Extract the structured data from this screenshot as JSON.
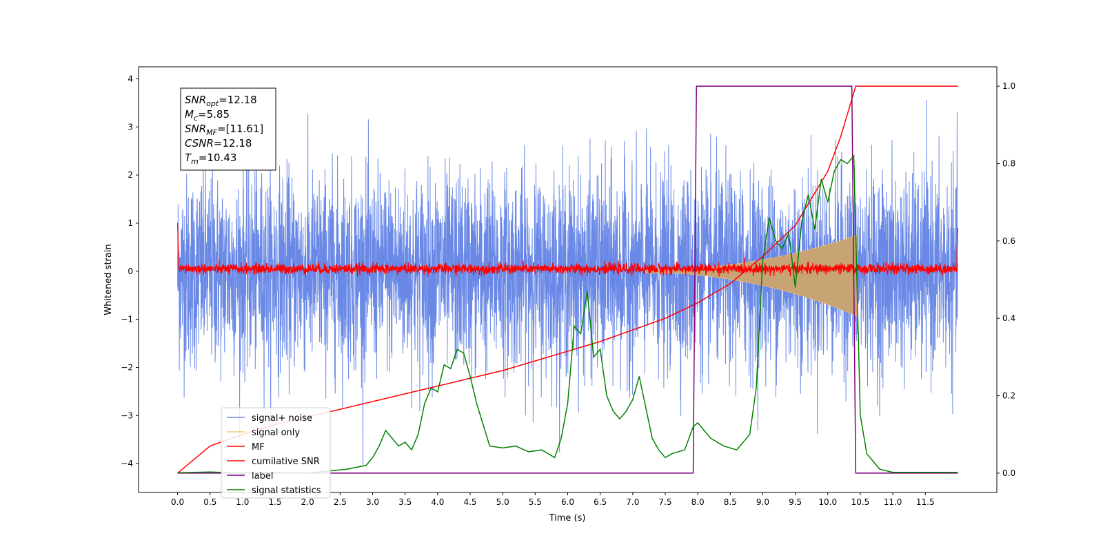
{
  "chart_data": {
    "type": "line",
    "xlabel": "Time (s)",
    "ylabel": "Whitened strain",
    "xlim": [
      -0.6,
      12.6
    ],
    "ylim": [
      -4.6,
      4.25
    ],
    "y2lim": [
      -0.05,
      1.05
    ],
    "x_ticks": [
      "0.0",
      "0.5",
      "1.0",
      "1.5",
      "2.0",
      "2.5",
      "3.0",
      "3.5",
      "4.0",
      "4.5",
      "5.0",
      "5.5",
      "6.0",
      "6.5",
      "7.0",
      "7.5",
      "8.0",
      "8.5",
      "9.0",
      "9.5",
      "10.0",
      "10.5",
      "11.0",
      "11.5"
    ],
    "y_ticks": [
      "4",
      "3",
      "2",
      "1",
      "0",
      "−1",
      "−2",
      "−3",
      "−4"
    ],
    "y2_ticks": [
      "1.0",
      "0.8",
      "0.6",
      "0.4",
      "0.2",
      "0.0"
    ],
    "legend_position": "lower-left",
    "colors": {
      "signal_noise": "#6a89e6",
      "signal_only": "#f5c97a",
      "signal_only_fill": "#c8a374",
      "mf": "#ff0000",
      "csnr": "#ff0000",
      "label": "#800080",
      "statistics": "#008000"
    },
    "series": [
      {
        "name": "signal+ noise",
        "key": "signal_noise",
        "amplitude_sigma": 1.0,
        "x_range": [
          0.0,
          12.0
        ]
      },
      {
        "name": "signal only",
        "key": "signal_only",
        "chirp": {
          "start": 7.2,
          "end": 10.45,
          "peak_amp": 0.75
        }
      },
      {
        "name": "MF",
        "key": "mf",
        "center": 0.05,
        "spread": 0.12
      },
      {
        "name": "cumilative SNR",
        "key": "csnr",
        "x": [
          0.0,
          0.5,
          1.0,
          1.5,
          2.0,
          2.5,
          3.0,
          3.5,
          4.0,
          4.5,
          5.0,
          5.5,
          6.0,
          6.5,
          7.0,
          7.5,
          8.0,
          8.5,
          9.0,
          9.5,
          10.0,
          10.2,
          10.43,
          11.0,
          12.0
        ],
        "y": [
          0.0,
          0.07,
          0.1,
          0.125,
          0.145,
          0.165,
          0.185,
          0.205,
          0.225,
          0.245,
          0.265,
          0.29,
          0.315,
          0.34,
          0.37,
          0.4,
          0.44,
          0.49,
          0.56,
          0.64,
          0.78,
          0.87,
          1.0,
          1.0,
          1.0
        ]
      },
      {
        "name": "label",
        "key": "label",
        "x": [
          0.0,
          7.93,
          7.98,
          10.37,
          10.43,
          12.0
        ],
        "y": [
          0.0,
          0.0,
          1.0,
          1.0,
          0.0,
          0.0
        ]
      },
      {
        "name": "signal statistics",
        "key": "statistics",
        "x": [
          0.0,
          0.5,
          1.0,
          1.5,
          2.0,
          2.3,
          2.6,
          2.9,
          3.0,
          3.1,
          3.2,
          3.3,
          3.4,
          3.5,
          3.6,
          3.7,
          3.8,
          3.9,
          4.0,
          4.1,
          4.2,
          4.3,
          4.4,
          4.5,
          4.6,
          4.8,
          5.0,
          5.2,
          5.4,
          5.6,
          5.8,
          5.9,
          6.0,
          6.1,
          6.2,
          6.3,
          6.4,
          6.5,
          6.6,
          6.7,
          6.8,
          6.9,
          7.0,
          7.1,
          7.2,
          7.3,
          7.4,
          7.5,
          7.6,
          7.8,
          7.93,
          8.0,
          8.2,
          8.4,
          8.6,
          8.8,
          8.9,
          9.0,
          9.1,
          9.2,
          9.3,
          9.4,
          9.5,
          9.6,
          9.7,
          9.8,
          9.9,
          10.0,
          10.1,
          10.2,
          10.3,
          10.4,
          10.5,
          10.6,
          10.8,
          11.0,
          12.0
        ],
        "y": [
          0.001,
          0.003,
          0.0,
          0.001,
          0.0,
          0.005,
          0.01,
          0.02,
          0.04,
          0.07,
          0.11,
          0.09,
          0.07,
          0.08,
          0.06,
          0.1,
          0.18,
          0.22,
          0.21,
          0.28,
          0.27,
          0.32,
          0.31,
          0.25,
          0.18,
          0.07,
          0.065,
          0.07,
          0.055,
          0.06,
          0.04,
          0.09,
          0.18,
          0.38,
          0.36,
          0.47,
          0.3,
          0.32,
          0.2,
          0.16,
          0.14,
          0.16,
          0.19,
          0.25,
          0.17,
          0.09,
          0.06,
          0.04,
          0.05,
          0.06,
          0.12,
          0.13,
          0.09,
          0.07,
          0.06,
          0.1,
          0.22,
          0.55,
          0.66,
          0.6,
          0.58,
          0.62,
          0.48,
          0.65,
          0.72,
          0.63,
          0.76,
          0.7,
          0.78,
          0.81,
          0.8,
          0.82,
          0.15,
          0.05,
          0.01,
          0.002,
          0.002
        ]
      }
    ],
    "annotations": [
      {
        "main": "SNR",
        "sub": "opt",
        "rest": "=12.18"
      },
      {
        "main": "M",
        "sub": "c",
        "rest": "=5.85"
      },
      {
        "main": "SNR",
        "sub": "MF",
        "rest": "=[11.61]"
      },
      {
        "main": "CSNR",
        "sub": "",
        "rest": "=12.18"
      },
      {
        "main": "T",
        "sub": "m",
        "rest": "=10.43"
      }
    ]
  }
}
